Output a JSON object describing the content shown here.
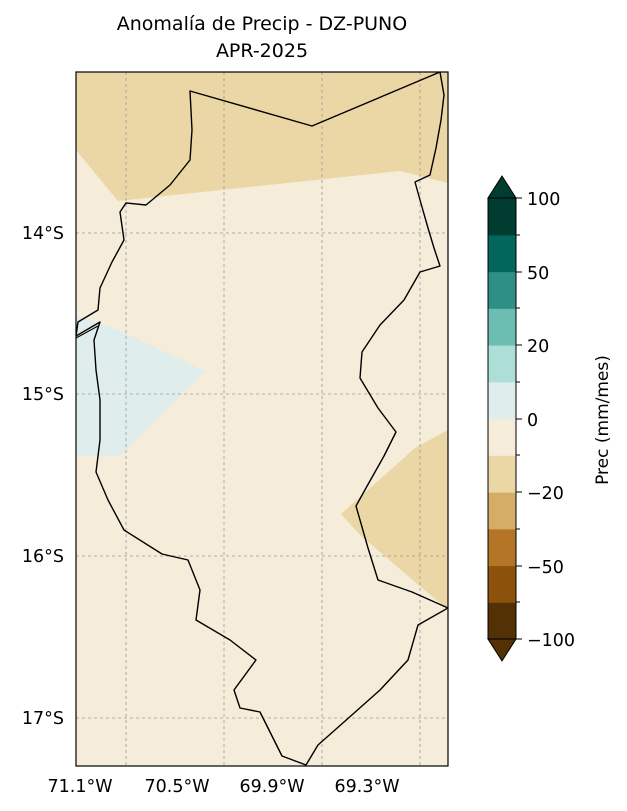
{
  "title": {
    "line1": "Anomalía de Precip - DZ-PUNO",
    "line2": "APR-2025"
  },
  "map": {
    "lat_ticks": [
      "14°S",
      "15°S",
      "16°S",
      "17°S"
    ],
    "lon_ticks": [
      "71.1°W",
      "70.5°W",
      "69.9°W",
      "69.3°W"
    ],
    "gridlines": true,
    "fill_colors": {
      "background": "#f5ecd9",
      "dry_anomaly": "#ebd6a6",
      "wet_anomaly": "#dfeeed",
      "boundary": "#000000"
    },
    "regions": [
      {
        "name": "north-dry-area",
        "class": "-10 to -20"
      },
      {
        "name": "southeast-dry-area",
        "class": "-10 to -20"
      },
      {
        "name": "west-wet-area",
        "class": "0 to 10"
      }
    ]
  },
  "colorbar": {
    "label": "Prec (mm/mes)",
    "tick_labels": [
      "100",
      "50",
      "20",
      "0",
      "−20",
      "−50",
      "−100"
    ],
    "bins": [
      {
        "color": "#543005"
      },
      {
        "color": "#8c510a"
      },
      {
        "color": "#b57527"
      },
      {
        "color": "#d4ae67"
      },
      {
        "color": "#ebd6a6"
      },
      {
        "color": "#f5ecd9"
      },
      {
        "color": "#dfeeed"
      },
      {
        "color": "#aedfd6"
      },
      {
        "color": "#6cbeb2"
      },
      {
        "color": "#2e8f87"
      },
      {
        "color": "#02665d"
      },
      {
        "color": "#003c30"
      }
    ],
    "extend": "both"
  }
}
